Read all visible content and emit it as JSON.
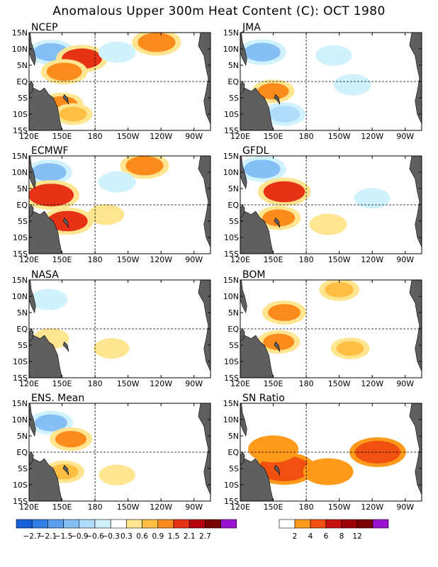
{
  "title": "Anomalous Upper 300m Heat Content (C): OCT 1980",
  "axes": {
    "lon_ticks": [
      "120E",
      "150E",
      "180",
      "150W",
      "120W",
      "90W"
    ],
    "lat_ticks": [
      "15N",
      "10N",
      "5N",
      "EQ",
      "5S",
      "10S",
      "15S"
    ]
  },
  "panels": [
    {
      "id": "ncep",
      "label": "NCEP"
    },
    {
      "id": "jma",
      "label": "JMA"
    },
    {
      "id": "ecmwf",
      "label": "ECMWF"
    },
    {
      "id": "gfdl",
      "label": "GFDL"
    },
    {
      "id": "nasa",
      "label": "NASA"
    },
    {
      "id": "bom",
      "label": "BOM"
    },
    {
      "id": "ens",
      "label": "ENS. Mean"
    },
    {
      "id": "sn",
      "label": "SN Ratio"
    }
  ],
  "legend_anomaly": {
    "labels": [
      "-2.7",
      "-2.1",
      "-1.5",
      "-0.9",
      "-0.6",
      "-0.3",
      "0.3",
      "0.6",
      "0.9",
      "1.5",
      "2.1",
      "2.7"
    ],
    "colors": [
      "#1560d8",
      "#2f7fe6",
      "#5a9ff0",
      "#86bff6",
      "#b0dcfb",
      "#d0f2fc",
      "#ffffff",
      "#ffe590",
      "#ffbf45",
      "#fb8c1c",
      "#e83216",
      "#b3000b",
      "#7a0000",
      "#9b14cf"
    ]
  },
  "legend_sn": {
    "labels": [
      "2",
      "4",
      "6",
      "8",
      "12"
    ],
    "colors": [
      "#ffffff",
      "#ff9a1a",
      "#f05010",
      "#c81010",
      "#9e0008",
      "#7a0000",
      "#9b14cf"
    ]
  },
  "chart_data": {
    "type": "heatmap",
    "title": "Anomalous Upper 300m Heat Content (C): OCT 1980",
    "x_range": [
      "120E",
      "75W"
    ],
    "y_range": [
      "15S",
      "15N"
    ],
    "panels": [
      "NCEP",
      "JMA",
      "ECMWF",
      "GFDL",
      "NASA",
      "BOM",
      "ENS. Mean",
      "SN Ratio"
    ],
    "anomaly_levels": [
      -2.7,
      -2.1,
      -1.5,
      -0.9,
      -0.6,
      -0.3,
      0.3,
      0.6,
      0.9,
      1.5,
      2.1,
      2.7
    ],
    "sn_levels": [
      2,
      4,
      6,
      8,
      12
    ],
    "features": {
      "NCEP": [
        {
          "lon": 140,
          "lat": 9,
          "value": -1.2
        },
        {
          "lon": 168,
          "lat": 7,
          "value": 1.6
        },
        {
          "lon": 152,
          "lat": 3,
          "value": 1.2
        },
        {
          "lon": 150,
          "lat": -7,
          "value": 0.9
        },
        {
          "lon": 200,
          "lat": 9,
          "value": -0.5
        },
        {
          "lon": 236,
          "lat": 12,
          "value": 1.4
        },
        {
          "lon": 160,
          "lat": -10,
          "value": 0.6
        }
      ],
      "JMA": [
        {
          "lon": 140,
          "lat": 9,
          "value": -1.3
        },
        {
          "lon": 150,
          "lat": -3,
          "value": 0.9
        },
        {
          "lon": 160,
          "lat": -10,
          "value": -0.9
        },
        {
          "lon": 222,
          "lat": -1,
          "value": -0.5
        },
        {
          "lon": 205,
          "lat": 8,
          "value": -0.4
        }
      ],
      "ECMWF": [
        {
          "lon": 138,
          "lat": 10,
          "value": -1.2
        },
        {
          "lon": 140,
          "lat": 3,
          "value": 2.0
        },
        {
          "lon": 155,
          "lat": -5,
          "value": 1.6
        },
        {
          "lon": 190,
          "lat": -3,
          "value": 0.4
        },
        {
          "lon": 225,
          "lat": 12,
          "value": 1.4
        },
        {
          "lon": 200,
          "lat": 7,
          "value": -0.5
        }
      ],
      "GFDL": [
        {
          "lon": 140,
          "lat": 11,
          "value": -1.3
        },
        {
          "lon": 160,
          "lat": 4,
          "value": 1.7
        },
        {
          "lon": 155,
          "lat": -4,
          "value": 1.0
        },
        {
          "lon": 200,
          "lat": -6,
          "value": 0.5
        },
        {
          "lon": 240,
          "lat": 2,
          "value": -0.4
        }
      ],
      "NASA": [
        {
          "lon": 138,
          "lat": 9,
          "value": -0.5
        },
        {
          "lon": 140,
          "lat": -3,
          "value": 0.4
        },
        {
          "lon": 195,
          "lat": -6,
          "value": 0.35
        }
      ],
      "BOM": [
        {
          "lon": 160,
          "lat": 5,
          "value": 1.0
        },
        {
          "lon": 155,
          "lat": -4,
          "value": 0.9
        },
        {
          "lon": 210,
          "lat": 12,
          "value": 0.7
        },
        {
          "lon": 220,
          "lat": -6,
          "value": 0.6
        }
      ],
      "ENS. Mean": [
        {
          "lon": 140,
          "lat": 9,
          "value": -1.0
        },
        {
          "lon": 158,
          "lat": 4,
          "value": 0.9
        },
        {
          "lon": 152,
          "lat": -6,
          "value": 0.7
        },
        {
          "lon": 200,
          "lat": -7,
          "value": 0.4
        }
      ],
      "SN Ratio": [
        {
          "lon": 160,
          "lat": -5,
          "value": 5
        },
        {
          "lon": 150,
          "lat": 1,
          "value": 3
        },
        {
          "lon": 245,
          "lat": 0,
          "value": 4
        },
        {
          "lon": 200,
          "lat": -6,
          "value": 3
        }
      ]
    }
  }
}
